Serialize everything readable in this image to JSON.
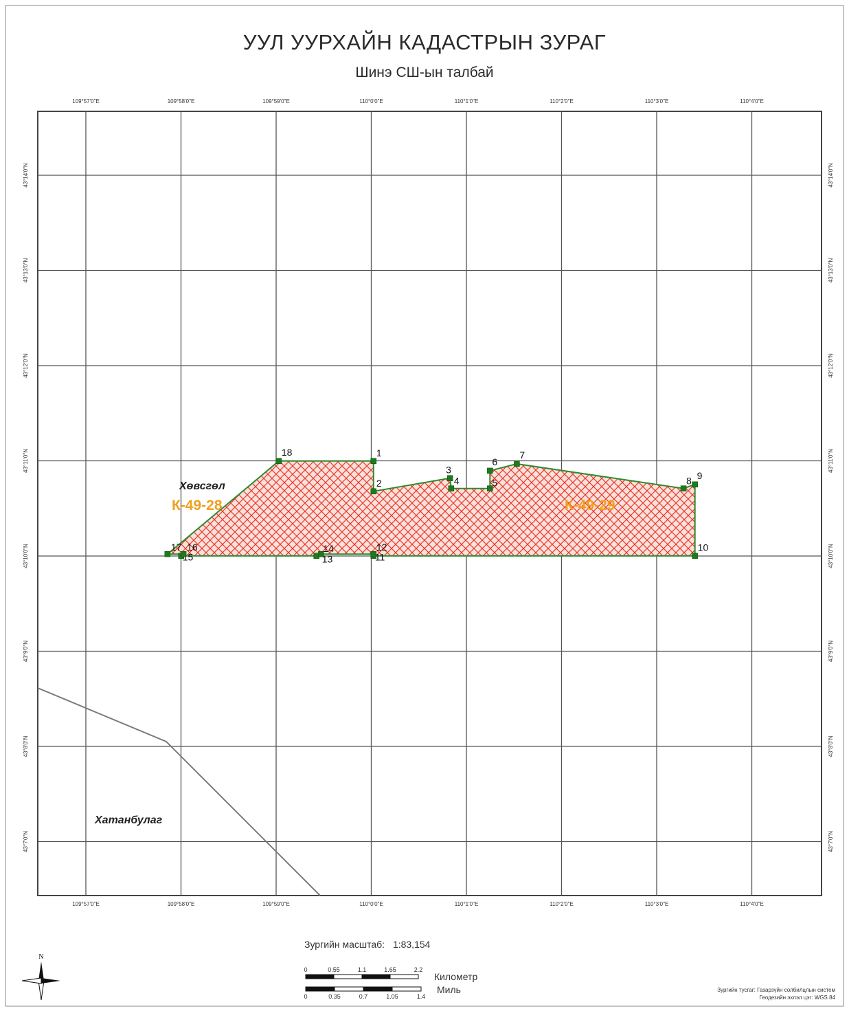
{
  "title": "УУЛ УУРХАЙН КАДАСТРЫН ЗУРАГ",
  "subtitle": "Шинэ СШ-ын талбай",
  "lon_labels": [
    "109°57'0\"E",
    "109°58'0\"E",
    "109°59'0\"E",
    "110°0'0\"E",
    "110°1'0\"E",
    "110°2'0\"E",
    "110°3'0\"E",
    "110°4'0\"E"
  ],
  "lat_labels": [
    "43°14'0\"N",
    "43°13'0\"N",
    "43°12'0\"N",
    "43°11'0\"N",
    "43°10'0\"N",
    "43°9'0\"N",
    "43°8'0\"N",
    "43°7'0\"N"
  ],
  "parcel": {
    "fill_color": "#e53b2a",
    "outline_color": "#2e8b2e",
    "vertices": [
      {
        "label": "1",
        "lon": 110.0004,
        "lat": 43.1833
      },
      {
        "label": "2",
        "lon": 110.0004,
        "lat": 43.178
      },
      {
        "label": "3",
        "lon": 110.0138,
        "lat": 43.1803
      },
      {
        "label": "4",
        "lon": 110.014,
        "lat": 43.1785
      },
      {
        "label": "5",
        "lon": 110.0208,
        "lat": 43.1785
      },
      {
        "label": "6",
        "lon": 110.0208,
        "lat": 43.1816
      },
      {
        "label": "7",
        "lon": 110.0255,
        "lat": 43.1828
      },
      {
        "label": "8",
        "lon": 110.0547,
        "lat": 43.1785
      },
      {
        "label": "9",
        "lon": 110.0567,
        "lat": 43.1792
      },
      {
        "label": "10",
        "lon": 110.0567,
        "lat": 43.1667
      },
      {
        "label": "11",
        "lon": 110.0004,
        "lat": 43.1667
      },
      {
        "label": "12",
        "lon": 110.0004,
        "lat": 43.167
      },
      {
        "label": "13",
        "lon": 109.9904,
        "lat": 43.1667
      },
      {
        "label": "14",
        "lon": 109.9912,
        "lat": 43.167
      },
      {
        "label": "15",
        "lon": 109.9667,
        "lat": 43.1667
      },
      {
        "label": "16",
        "lon": 109.9671,
        "lat": 43.167
      },
      {
        "label": "17",
        "lon": 109.9643,
        "lat": 43.167
      },
      {
        "label": "18",
        "lon": 109.9838,
        "lat": 43.1833
      }
    ]
  },
  "sheet_labels": [
    {
      "text": "К-49-28",
      "color": "#f0a020"
    },
    {
      "text": "К-49-29",
      "color": "#f0a020"
    }
  ],
  "place_names": [
    {
      "text": "Хөвсгөл"
    },
    {
      "text": "Хатанбулаг"
    }
  ],
  "scale": {
    "label": "Зургийн масштаб:",
    "value": "1:83,154",
    "km_ticks": [
      "0",
      "0.55",
      "1.1",
      "1.65",
      "2.2"
    ],
    "km_unit": "Километр",
    "mile_ticks": [
      "0",
      "0.35",
      "0.7",
      "1.05",
      "1.4"
    ],
    "mile_unit": "Миль"
  },
  "north_arrow": {
    "label": "N",
    "icon": "compass-rose-icon"
  },
  "footer": {
    "projection": "Зургийн тусгаг: Газарзүйн солбилцлын систем",
    "datum": "Геодезийн эхлэл цэг: WGS 84"
  }
}
